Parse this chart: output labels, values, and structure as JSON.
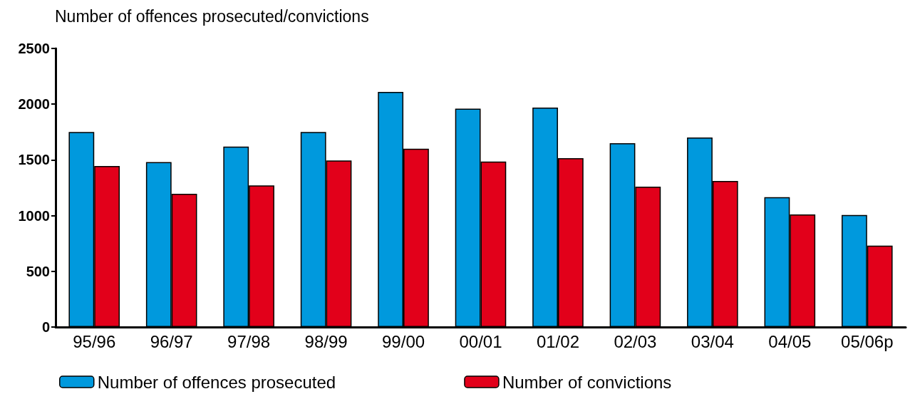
{
  "chart_data": {
    "type": "bar",
    "ylabel": "Number of offences prosecuted/convictions",
    "categories": [
      "95/96",
      "96/97",
      "97/98",
      "98/99",
      "99/00",
      "00/01",
      "01/02",
      "02/03",
      "03/04",
      "04/05",
      "05/06p"
    ],
    "series": [
      {
        "name": "Number of offences prosecuted",
        "color": "#0099dd",
        "values": [
          1750,
          1480,
          1620,
          1750,
          2110,
          1960,
          1970,
          1650,
          1700,
          1165,
          1005
        ]
      },
      {
        "name": "Number of convictions",
        "color": "#e2001a",
        "values": [
          1445,
          1195,
          1270,
          1495,
          1600,
          1485,
          1515,
          1260,
          1310,
          1010,
          730
        ]
      }
    ],
    "ylim": [
      0,
      2500
    ],
    "yticks": [
      0,
      500,
      1000,
      1500,
      2000,
      2500
    ],
    "grid": false,
    "legend": "bottom"
  }
}
